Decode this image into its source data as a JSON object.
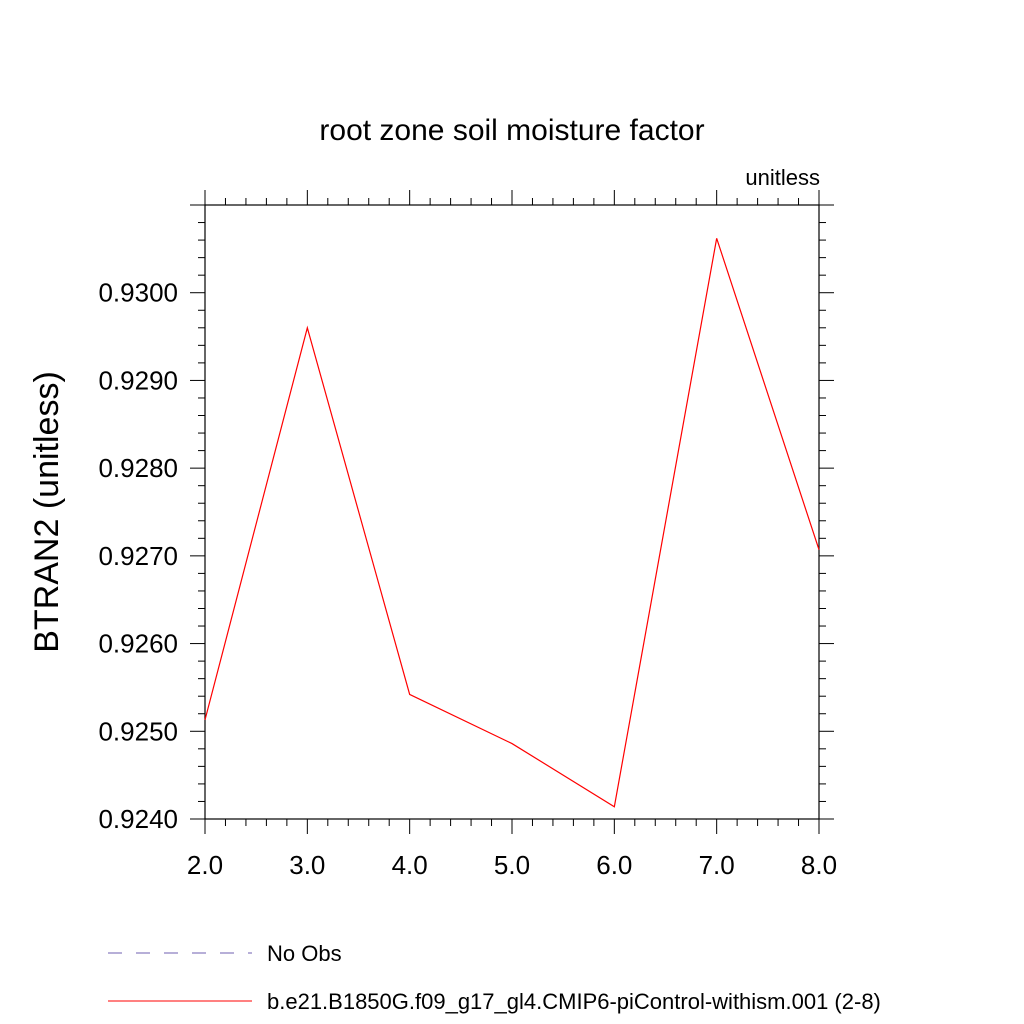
{
  "chart_data": {
    "type": "line",
    "title": "root zone soil moisture factor",
    "subtitle": "unitless",
    "xlabel": "",
    "ylabel": "BTRAN2  (unitless)",
    "xlim": [
      2.0,
      8.0
    ],
    "ylim": [
      0.924,
      0.931
    ],
    "x_ticks": [
      "2.0",
      "3.0",
      "4.0",
      "5.0",
      "6.0",
      "7.0",
      "8.0"
    ],
    "y_ticks": [
      "0.9240",
      "0.9250",
      "0.9260",
      "0.9270",
      "0.9280",
      "0.9290",
      "0.9300"
    ],
    "grid": false,
    "legend_position": "bottom",
    "series": [
      {
        "name": "No Obs",
        "color": "#6f5fb0",
        "style": "dashed",
        "x": [],
        "y": []
      },
      {
        "name": "b.e21.B1850G.f09_g17_gl4.CMIP6-piControl-withism.001 (2-8)",
        "color": "#ff0000",
        "style": "solid",
        "x": [
          2,
          3,
          4,
          5,
          6,
          7,
          8
        ],
        "y": [
          0.92513,
          0.9296,
          0.92542,
          0.92486,
          0.92414,
          0.93062,
          0.92707
        ]
      }
    ]
  }
}
